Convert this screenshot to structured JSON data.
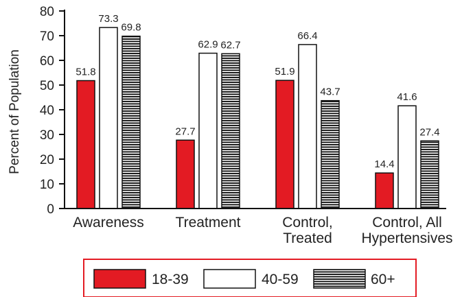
{
  "chart_data": {
    "type": "bar",
    "categories": [
      [
        "Awareness"
      ],
      [
        "Treatment"
      ],
      [
        "Control,",
        "Treated"
      ],
      [
        "Control, All",
        "Hypertensives"
      ]
    ],
    "series": [
      {
        "name": "18-39",
        "values": [
          51.8,
          27.7,
          51.9,
          14.4
        ],
        "labels": [
          "51.8",
          "27.7",
          "51.9",
          "14.4"
        ],
        "fill": "#e31b23",
        "pattern": "solid"
      },
      {
        "name": "40-59",
        "values": [
          73.3,
          62.9,
          66.4,
          41.6
        ],
        "labels": [
          "73.3",
          "62.9",
          "66.4",
          "41.6"
        ],
        "fill": "#ffffff",
        "pattern": "solid"
      },
      {
        "name": "60+",
        "values": [
          69.8,
          62.7,
          43.7,
          27.4
        ],
        "labels": [
          "69.8",
          "62.7",
          "43.7",
          "27.4"
        ],
        "fill": "#ffffff",
        "pattern": "horizontal-stripes"
      }
    ],
    "ylabel": "Percent of Population",
    "xlabel": "",
    "title": "",
    "ylim": [
      0,
      80
    ],
    "yticks": [
      "0",
      "10",
      "20",
      "30",
      "40",
      "50",
      "60",
      "70",
      "80"
    ],
    "legend_position": "bottom",
    "legend_border_color": "#e31b23",
    "grid": false
  }
}
